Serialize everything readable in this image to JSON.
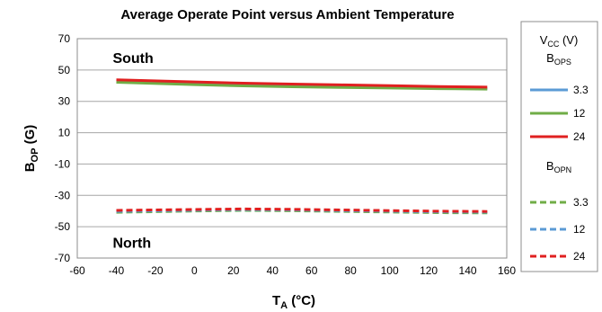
{
  "chart_data": {
    "type": "line",
    "title": "Average Operate Point versus Ambient Temperature",
    "xlabel": {
      "main": "T",
      "sub": "A",
      "unit": " (°C)"
    },
    "ylabel": {
      "main": "B",
      "sub": "OP",
      "unit": " (G)"
    },
    "xlim": [
      -60,
      160
    ],
    "ylim": [
      -70,
      70
    ],
    "x_ticks": [
      "-60",
      "-40",
      "-20",
      "0",
      "20",
      "40",
      "60",
      "80",
      "100",
      "120",
      "140",
      "160"
    ],
    "y_ticks": [
      "70",
      "50",
      "30",
      "10",
      "-10",
      "-30",
      "-50",
      "-70"
    ],
    "grid": "horizontal",
    "annotations": [
      {
        "text": "South",
        "x": -40,
        "y": 58
      },
      {
        "text": "North",
        "x": -40,
        "y": -60
      }
    ],
    "legend": {
      "placement": "right",
      "header": {
        "main": "V",
        "sub": "CC",
        "unit": " (V)"
      },
      "group1": {
        "main": "B",
        "sub": "OPS"
      },
      "group2": {
        "main": "B",
        "sub": "OPN"
      }
    },
    "x": [
      -40,
      0,
      25,
      50,
      75,
      100,
      125,
      150
    ],
    "series": [
      {
        "name": "3.3",
        "group": "OPS",
        "style": "solid",
        "color": "#5B9BD5",
        "values": [
          42.5,
          41.0,
          40.2,
          39.6,
          39.2,
          38.8,
          38.4,
          38.1
        ]
      },
      {
        "name": "12",
        "group": "OPS",
        "style": "solid",
        "color": "#70AD47",
        "values": [
          42.2,
          40.7,
          39.9,
          39.3,
          38.9,
          38.5,
          38.1,
          37.8
        ]
      },
      {
        "name": "24",
        "group": "OPS",
        "style": "solid",
        "color": "#E02020",
        "values": [
          43.8,
          42.4,
          41.6,
          41.0,
          40.5,
          40.0,
          39.5,
          39.1
        ]
      },
      {
        "name": "3.3",
        "group": "OPN",
        "style": "dashed",
        "color": "#70AD47",
        "values": [
          -40.8,
          -40.0,
          -39.6,
          -39.8,
          -40.2,
          -40.6,
          -41.0,
          -41.2
        ]
      },
      {
        "name": "12",
        "group": "OPN",
        "style": "dashed",
        "color": "#5B9BD5",
        "values": [
          -40.2,
          -39.5,
          -39.1,
          -39.3,
          -39.7,
          -40.1,
          -40.5,
          -40.7
        ]
      },
      {
        "name": "24",
        "group": "OPN",
        "style": "dashed",
        "color": "#E02020",
        "values": [
          -39.6,
          -39.0,
          -38.7,
          -38.9,
          -39.3,
          -39.7,
          -40.1,
          -40.3
        ]
      }
    ]
  }
}
